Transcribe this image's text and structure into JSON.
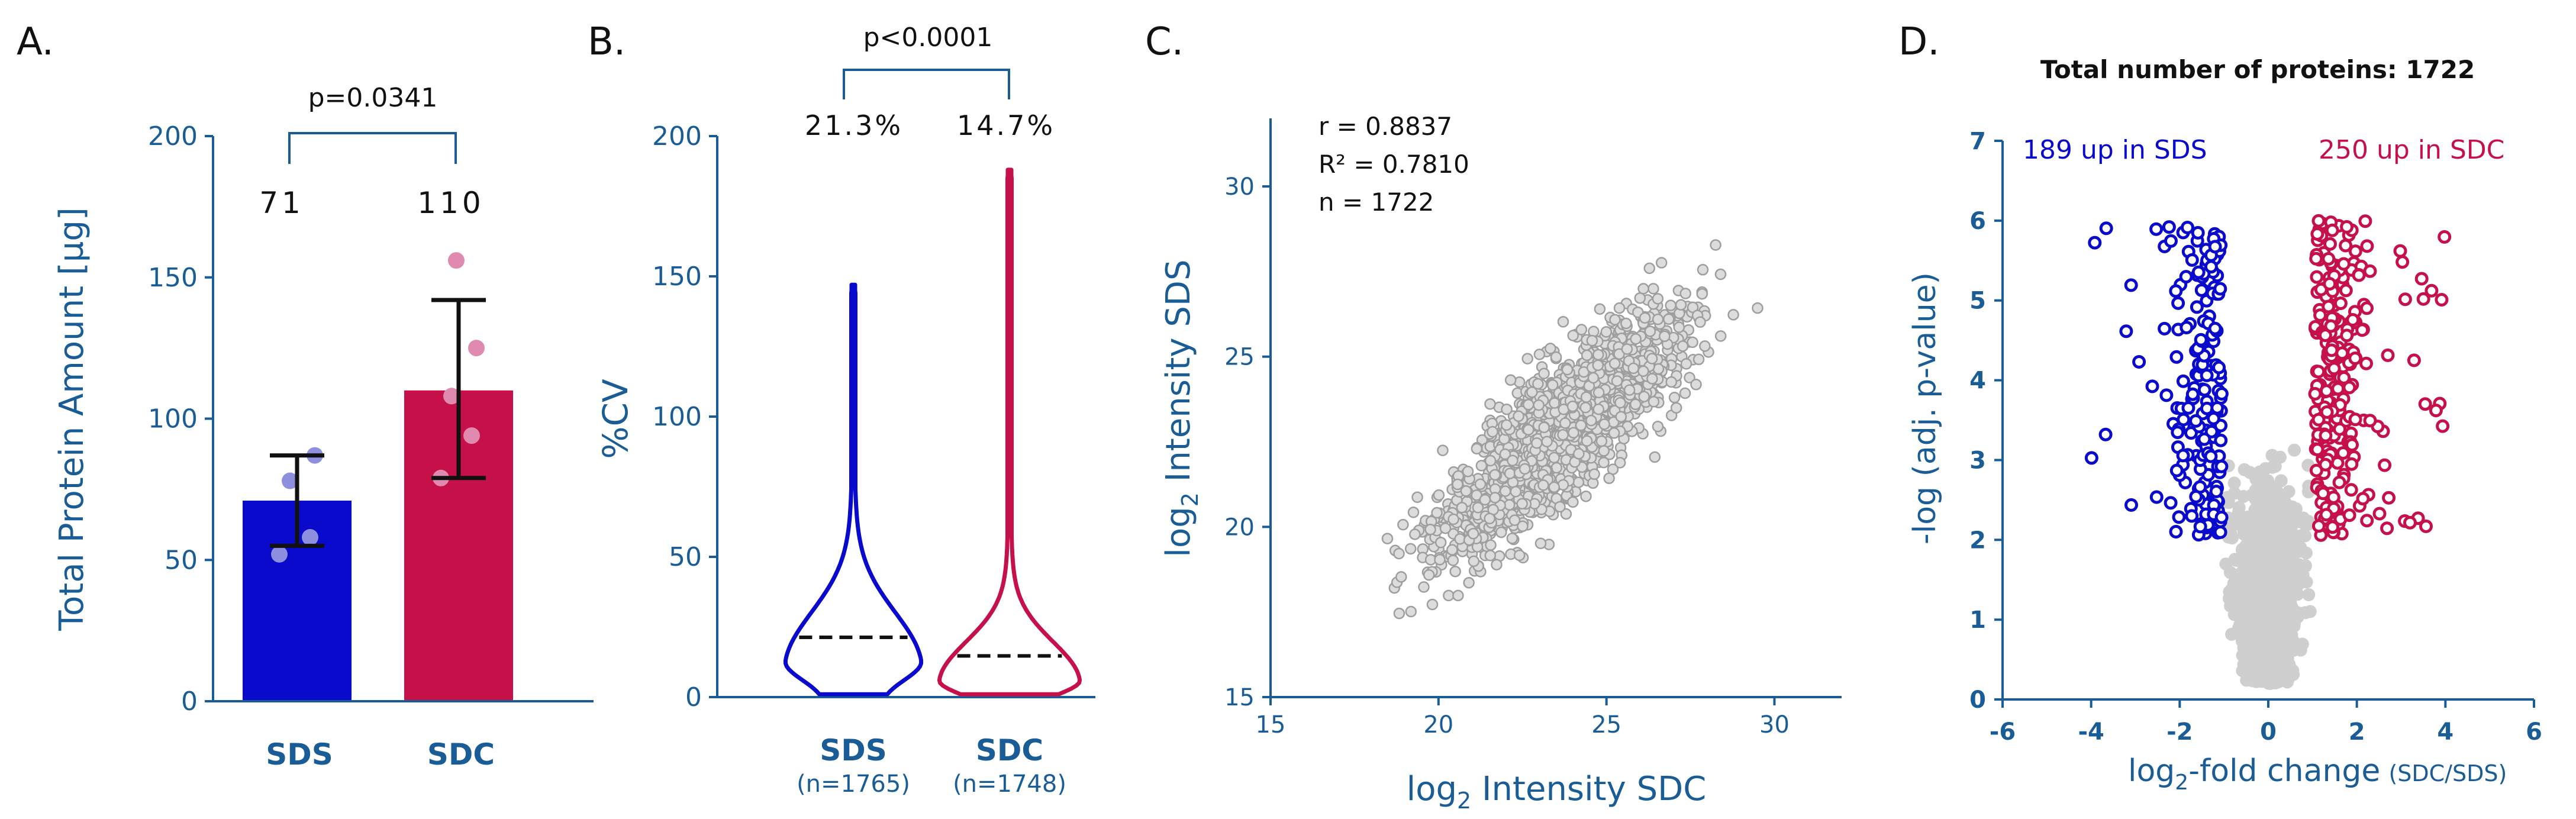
{
  "colors": {
    "sds": "#0a0acc",
    "sdc": "#c5104a",
    "axis": "#1a5c96",
    "grey": "#b9b9b9"
  },
  "chart_data": [
    {
      "panel": "A.",
      "type": "bar",
      "categories": [
        "SDS",
        "SDC"
      ],
      "values": [
        71,
        110
      ],
      "value_labels": [
        "71",
        "110"
      ],
      "error_bars": [
        {
          "low": 55,
          "high": 87
        },
        {
          "low": 79,
          "high": 142
        }
      ],
      "points": [
        [
          52,
          58,
          78,
          87
        ],
        [
          79,
          94,
          108,
          125,
          156
        ]
      ],
      "ylabel": "Total Protein Amount [µg]",
      "ylim": [
        0,
        200
      ],
      "yticks": [
        "0",
        "50",
        "100",
        "150",
        "200"
      ],
      "annotation": "p=0.0341"
    },
    {
      "panel": "B.",
      "type": "violin",
      "categories": [
        "SDS",
        "SDC"
      ],
      "category_n": [
        "(n=1765)",
        "(n=1748)"
      ],
      "medians": [
        21.3,
        14.7
      ],
      "median_labels": [
        "21.3%",
        "14.7%"
      ],
      "max": [
        147,
        188
      ],
      "ylabel": "%CV",
      "ylim": [
        0,
        200
      ],
      "yticks": [
        "0",
        "50",
        "100",
        "150",
        "200"
      ],
      "annotation": "p<0.0001"
    },
    {
      "panel": "C.",
      "type": "scatter",
      "xlabel_pre": "log",
      "xlabel_sub": "2",
      "xlabel_post": " Intensity SDC",
      "ylabel_pre": "log",
      "ylabel_sub": "2",
      "ylabel_post": " Intensity SDS",
      "xlim": [
        15,
        32
      ],
      "ylim": [
        15,
        32
      ],
      "xticks": [
        "15",
        "20",
        "25",
        "30"
      ],
      "yticks": [
        "15",
        "20",
        "25",
        "30"
      ],
      "stats": [
        "r = 0.8837",
        "R² = 0.7810",
        "n = 1722"
      ],
      "n_points": 1722
    },
    {
      "panel": "D.",
      "type": "scatter",
      "title": "Total number of proteins: 1722",
      "xlim": [
        -6,
        6
      ],
      "ylim": [
        0,
        7
      ],
      "xticks": [
        "-6",
        "-4",
        "-2",
        "0",
        "2",
        "4",
        "6"
      ],
      "yticks": [
        "0",
        "1",
        "2",
        "3",
        "4",
        "5",
        "6",
        "7"
      ],
      "ylabel": "-log (adj. p-value)",
      "xlabel_pre": "log",
      "xlabel_sub": "2",
      "xlabel_post": "-fold change",
      "xlabel_suffix": "(SDC/SDS)",
      "up_sds": "189 up in SDS",
      "up_sdc": "250 up in SDC",
      "n_up_sds": 189,
      "n_up_sdc": 250
    }
  ]
}
